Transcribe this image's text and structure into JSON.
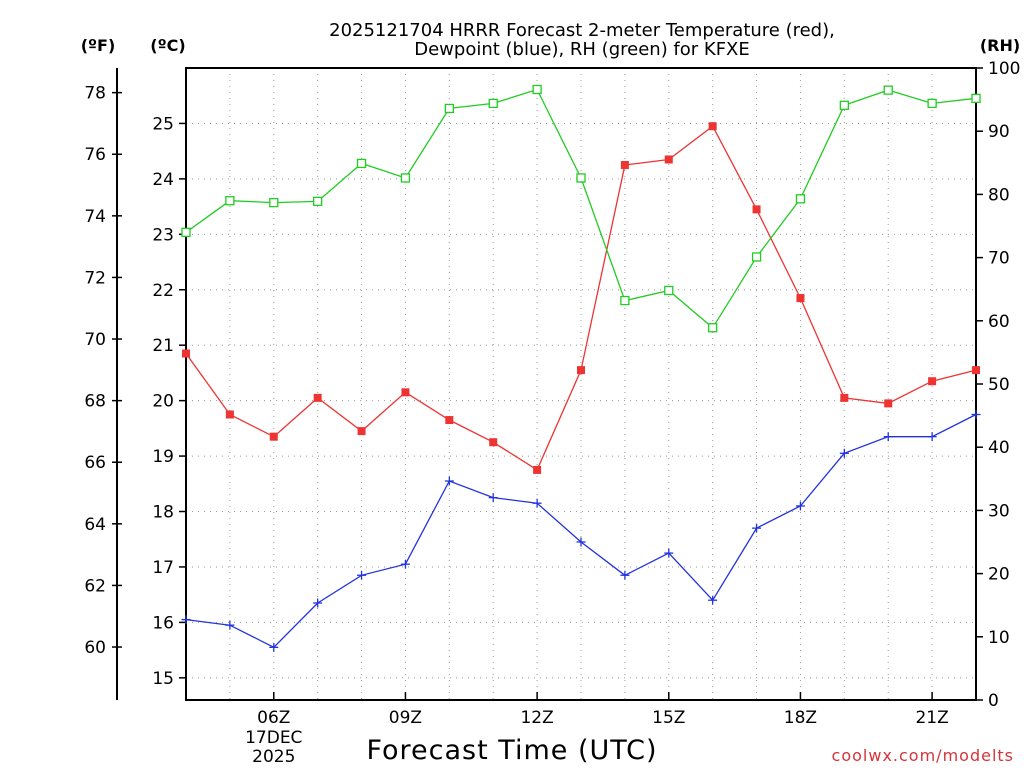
{
  "chart_data": {
    "type": "line",
    "title_line1": "2025121704 HRRR Forecast 2-meter Temperature (red),",
    "title_line2": "Dewpoint (blue), RH (green) for KFXE",
    "xlabel": "Forecast Time (UTC)",
    "credit": "coolwx.com/modelts",
    "units": {
      "fahrenheit": "(ºF)",
      "celsius": "(ºC)",
      "rh": "(RH)"
    },
    "x": [
      4,
      5,
      6,
      7,
      8,
      9,
      10,
      11,
      12,
      13,
      14,
      15,
      16,
      17,
      18,
      19,
      20,
      21,
      22
    ],
    "xlim": [
      4,
      22
    ],
    "x_ticks": [
      {
        "x": 6,
        "label": "06Z",
        "sub1": "17DEC",
        "sub2": "2025"
      },
      {
        "x": 9,
        "label": "09Z"
      },
      {
        "x": 12,
        "label": "12Z"
      },
      {
        "x": 15,
        "label": "15Z"
      },
      {
        "x": 18,
        "label": "18Z"
      },
      {
        "x": 21,
        "label": "21Z"
      }
    ],
    "ylim_celsius": [
      14.6,
      26.0
    ],
    "ylim_rh": [
      0,
      100
    ],
    "celsius_ticks": [
      "15",
      "16",
      "17",
      "18",
      "19",
      "20",
      "21",
      "22",
      "23",
      "24",
      "25"
    ],
    "fahrenheit_ticks": [
      "60",
      "62",
      "64",
      "66",
      "68",
      "70",
      "72",
      "74",
      "76",
      "78"
    ],
    "rh_ticks": [
      "0",
      "10",
      "20",
      "30",
      "40",
      "50",
      "60",
      "70",
      "80",
      "90",
      "100"
    ],
    "series": [
      {
        "name": "Temperature",
        "units": "°C",
        "axis": "celsius",
        "color": "#ee3333",
        "marker": "square-filled",
        "values": [
          20.85,
          19.75,
          19.35,
          20.05,
          19.45,
          20.15,
          19.65,
          19.25,
          18.75,
          20.55,
          24.25,
          24.35,
          24.95,
          23.45,
          21.85,
          20.05,
          19.95,
          20.35,
          20.55
        ]
      },
      {
        "name": "Dewpoint",
        "units": "°C",
        "axis": "celsius",
        "color": "#2233dd",
        "marker": "plus",
        "values": [
          16.05,
          15.95,
          15.55,
          16.35,
          16.85,
          17.05,
          18.55,
          18.25,
          18.15,
          17.45,
          16.85,
          17.25,
          16.4,
          17.7,
          18.1,
          19.05,
          19.35,
          19.35,
          19.75
        ]
      },
      {
        "name": "RH",
        "units": "%",
        "axis": "rh",
        "color": "#22cc22",
        "marker": "square-open",
        "values": [
          74.0,
          79.0,
          78.7,
          78.9,
          84.9,
          82.6,
          93.6,
          94.4,
          96.6,
          82.6,
          63.2,
          64.8,
          58.9,
          70.1,
          79.3,
          94.1,
          96.5,
          94.4,
          95.2
        ]
      }
    ]
  }
}
